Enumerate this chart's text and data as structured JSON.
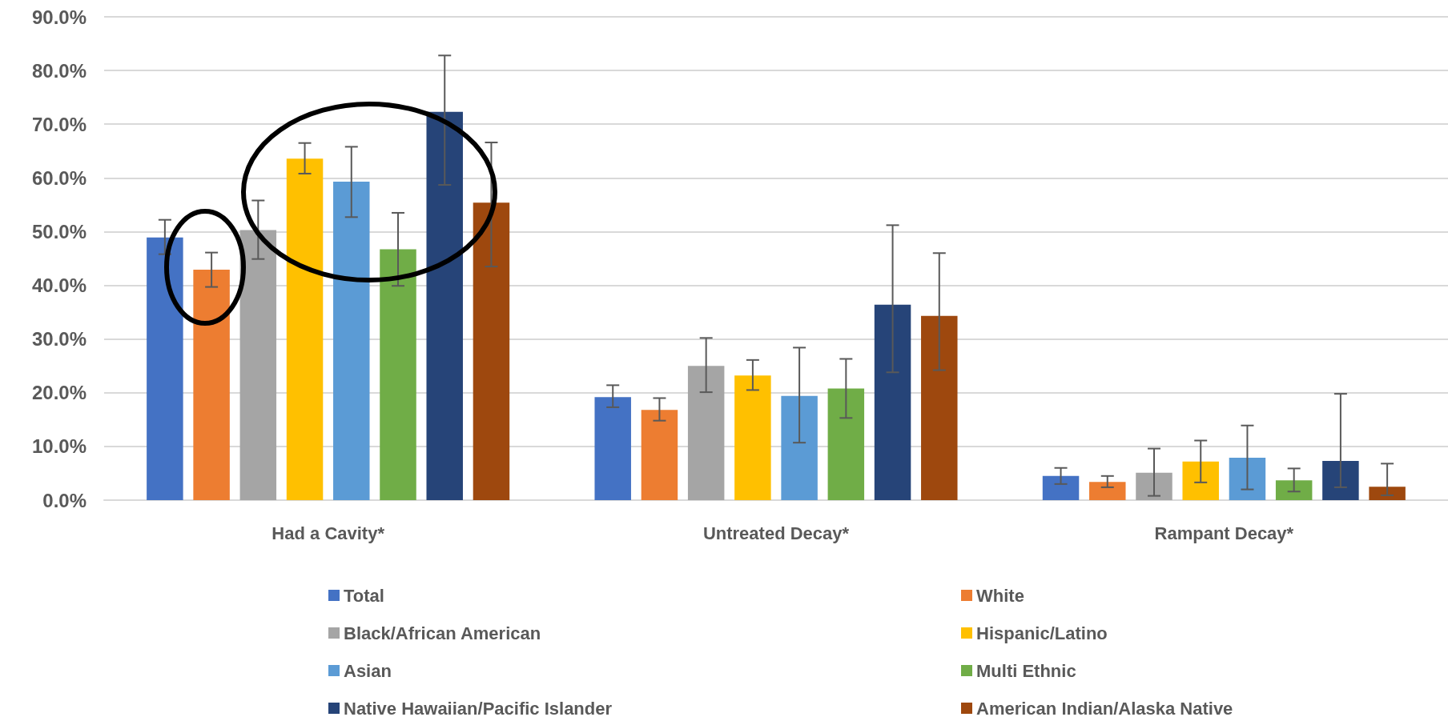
{
  "chart_data": {
    "type": "bar",
    "categories": [
      "Had a Cavity*",
      "Untreated Decay*",
      "Rampant Decay*"
    ],
    "series": [
      {
        "name": "Total",
        "color": "#4472c4",
        "values": [
          48.9,
          19.2,
          4.5
        ],
        "errors": [
          [
            45.8,
            52.2
          ],
          [
            17.3,
            21.4
          ],
          [
            3.0,
            6.0
          ]
        ]
      },
      {
        "name": "White",
        "color": "#ed7d31",
        "values": [
          42.9,
          16.8,
          3.4
        ],
        "errors": [
          [
            39.7,
            46.1
          ],
          [
            14.8,
            19.0
          ],
          [
            2.4,
            4.5
          ]
        ]
      },
      {
        "name": "Black/African American",
        "color": "#a5a5a5",
        "values": [
          50.3,
          25.0,
          5.1
        ],
        "errors": [
          [
            44.9,
            55.8
          ],
          [
            20.1,
            30.2
          ],
          [
            0.8,
            9.6
          ]
        ]
      },
      {
        "name": "Hispanic/Latino",
        "color": "#ffc000",
        "values": [
          63.6,
          23.2,
          7.2
        ],
        "errors": [
          [
            60.8,
            66.5
          ],
          [
            20.5,
            26.1
          ],
          [
            3.3,
            11.1
          ]
        ]
      },
      {
        "name": "Asian",
        "color": "#5b9bd5",
        "values": [
          59.3,
          19.4,
          7.9
        ],
        "errors": [
          [
            52.7,
            65.8
          ],
          [
            10.7,
            28.4
          ],
          [
            2.0,
            13.9
          ]
        ]
      },
      {
        "name": "Multi Ethnic",
        "color": "#70ad47",
        "values": [
          46.7,
          20.8,
          3.7
        ],
        "errors": [
          [
            39.9,
            53.5
          ],
          [
            15.3,
            26.3
          ],
          [
            1.6,
            5.9
          ]
        ]
      },
      {
        "name": "Native Hawaiian/Pacific Islander",
        "color": "#264478",
        "values": [
          72.3,
          36.4,
          7.3
        ],
        "errors": [
          [
            58.7,
            82.8
          ],
          [
            23.8,
            51.2
          ],
          [
            2.4,
            19.8
          ]
        ]
      },
      {
        "name": "American Indian/Alaska Native",
        "color": "#9e480e",
        "values": [
          55.4,
          34.3,
          2.5
        ],
        "errors": [
          [
            43.5,
            66.6
          ],
          [
            24.2,
            46.0
          ],
          [
            0.9,
            6.8
          ]
        ]
      }
    ],
    "ylim": [
      0,
      90
    ],
    "yticks": [
      {
        "value": 0,
        "label": "0.0%"
      },
      {
        "value": 10,
        "label": "10.0%"
      },
      {
        "value": 20,
        "label": "20.0%"
      },
      {
        "value": 30,
        "label": "30.0%"
      },
      {
        "value": 40,
        "label": "40.0%"
      },
      {
        "value": 50,
        "label": "50.0%"
      },
      {
        "value": 60,
        "label": "60.0%"
      },
      {
        "value": 70,
        "label": "70.0%"
      },
      {
        "value": 80,
        "label": "80.0%"
      },
      {
        "value": 90,
        "label": "90.0%"
      }
    ],
    "grid": "y",
    "legend": "bottom"
  }
}
